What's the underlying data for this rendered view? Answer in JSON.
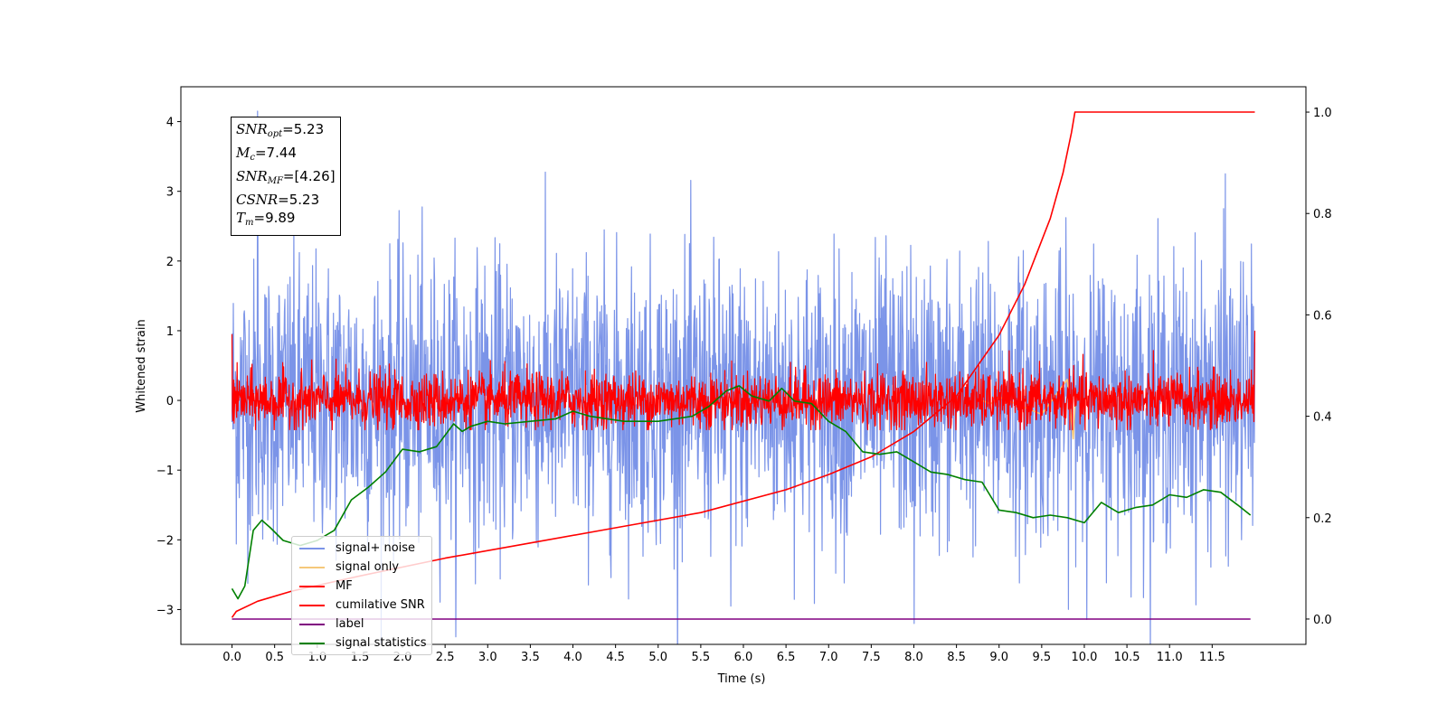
{
  "figure": {
    "x_axis_label": "Time (s)",
    "y_axis_label": "Whitened strain"
  },
  "stats": {
    "snr_opt_sym": "SNR",
    "snr_opt_sub": "opt",
    "snr_opt_val": "=5.23",
    "mc_sym": "M",
    "mc_sub": "c",
    "mc_val": "=7.44",
    "snr_mf_sym": "SNR",
    "snr_mf_sub": "MF",
    "snr_mf_val": "=[4.26]",
    "csnr_sym": "CSNR",
    "csnr_val": "=5.23",
    "tm_sym": "T",
    "tm_sub": "m",
    "tm_val": "=9.89"
  },
  "legend": [
    {
      "label": "signal+ noise",
      "color": "#7b94e8"
    },
    {
      "label": "signal only",
      "color": "#f5c87a"
    },
    {
      "label": "MF",
      "color": "#ff0000"
    },
    {
      "label": "cumilative SNR",
      "color": "#ff0000"
    },
    {
      "label": "label",
      "color": "#800080"
    },
    {
      "label": "signal statistics",
      "color": "#008000"
    }
  ],
  "chart_data": {
    "type": "line",
    "xlabel": "Time (s)",
    "ylabel": "Whitened strain",
    "xlim": [
      -0.6,
      12.6
    ],
    "ylim": [
      -3.5,
      4.5
    ],
    "y2lim": [
      -0.05,
      1.05
    ],
    "x_ticks": [
      0.0,
      0.5,
      1.0,
      1.5,
      2.0,
      2.5,
      3.0,
      3.5,
      4.0,
      4.5,
      5.0,
      5.5,
      6.0,
      6.5,
      7.0,
      7.5,
      8.0,
      8.5,
      9.0,
      9.5,
      10.0,
      10.5,
      11.0,
      11.5
    ],
    "y_ticks": [
      -3,
      -2,
      -1,
      0,
      1,
      2,
      3,
      4
    ],
    "y2_ticks": [
      0.0,
      0.2,
      0.4,
      0.6,
      0.8,
      1.0
    ],
    "series": [
      {
        "name": "signal+ noise",
        "axis": "left",
        "color": "#7b94e8",
        "kind": "noise",
        "x_range": [
          0.0,
          12.0
        ],
        "center": 0.0,
        "sigma": 1.0,
        "samples": 2400,
        "spike_max": 4.15,
        "spike_min": -3.2
      },
      {
        "name": "signal only",
        "axis": "left",
        "color": "#f5c87a",
        "x": [
          8.8,
          8.9,
          9.0,
          9.5,
          9.8,
          9.87,
          9.9
        ],
        "y": [
          0.0,
          -0.05,
          0.05,
          -0.2,
          0.3,
          -0.55,
          0.1
        ]
      },
      {
        "name": "MF",
        "axis": "left",
        "color": "#ff0000",
        "kind": "noise",
        "x_range": [
          0.0,
          12.0
        ],
        "center": 0.0,
        "sigma": 0.2,
        "samples": 2400,
        "clip": [
          -0.42,
          0.75
        ],
        "start_value": 0.95,
        "end_value": 1.0
      },
      {
        "name": "cumilative SNR",
        "axis": "right",
        "color": "#ff0000",
        "x": [
          0.0,
          0.05,
          0.3,
          0.7,
          1.5,
          2.5,
          3.5,
          4.5,
          5.5,
          6.5,
          7.0,
          7.5,
          8.0,
          8.5,
          9.0,
          9.3,
          9.6,
          9.75,
          9.85,
          9.89,
          9.9,
          12.0
        ],
        "y": [
          0.003,
          0.015,
          0.035,
          0.055,
          0.085,
          0.12,
          0.15,
          0.18,
          0.21,
          0.255,
          0.285,
          0.32,
          0.37,
          0.44,
          0.56,
          0.66,
          0.79,
          0.88,
          0.96,
          1.0,
          1.0,
          1.0
        ]
      },
      {
        "name": "label",
        "axis": "right",
        "color": "#800080",
        "x": [
          0.0,
          11.95
        ],
        "y": [
          0.0,
          0.0
        ]
      },
      {
        "name": "signal statistics",
        "axis": "right",
        "color": "#008000",
        "x": [
          0.0,
          0.07,
          0.15,
          0.25,
          0.35,
          0.45,
          0.6,
          0.8,
          1.0,
          1.2,
          1.4,
          1.6,
          1.8,
          2.0,
          2.2,
          2.4,
          2.6,
          2.7,
          2.8,
          3.0,
          3.2,
          3.5,
          3.8,
          4.0,
          4.2,
          4.4,
          4.6,
          5.0,
          5.4,
          5.6,
          5.8,
          5.95,
          6.1,
          6.3,
          6.45,
          6.6,
          6.8,
          7.0,
          7.2,
          7.4,
          7.6,
          7.8,
          8.0,
          8.2,
          8.4,
          8.6,
          8.8,
          9.0,
          9.2,
          9.4,
          9.6,
          9.8,
          10.0,
          10.2,
          10.4,
          10.6,
          10.8,
          11.0,
          11.2,
          11.4,
          11.6,
          11.8,
          11.95
        ],
        "y": [
          0.06,
          0.04,
          0.065,
          0.175,
          0.195,
          0.18,
          0.155,
          0.145,
          0.155,
          0.175,
          0.235,
          0.26,
          0.29,
          0.335,
          0.33,
          0.34,
          0.385,
          0.37,
          0.38,
          0.39,
          0.385,
          0.39,
          0.395,
          0.41,
          0.4,
          0.395,
          0.39,
          0.39,
          0.4,
          0.42,
          0.45,
          0.46,
          0.44,
          0.43,
          0.455,
          0.43,
          0.425,
          0.39,
          0.37,
          0.33,
          0.325,
          0.33,
          0.31,
          0.29,
          0.285,
          0.275,
          0.27,
          0.215,
          0.21,
          0.2,
          0.205,
          0.2,
          0.19,
          0.23,
          0.21,
          0.22,
          0.225,
          0.245,
          0.24,
          0.255,
          0.25,
          0.225,
          0.205
        ]
      }
    ]
  }
}
